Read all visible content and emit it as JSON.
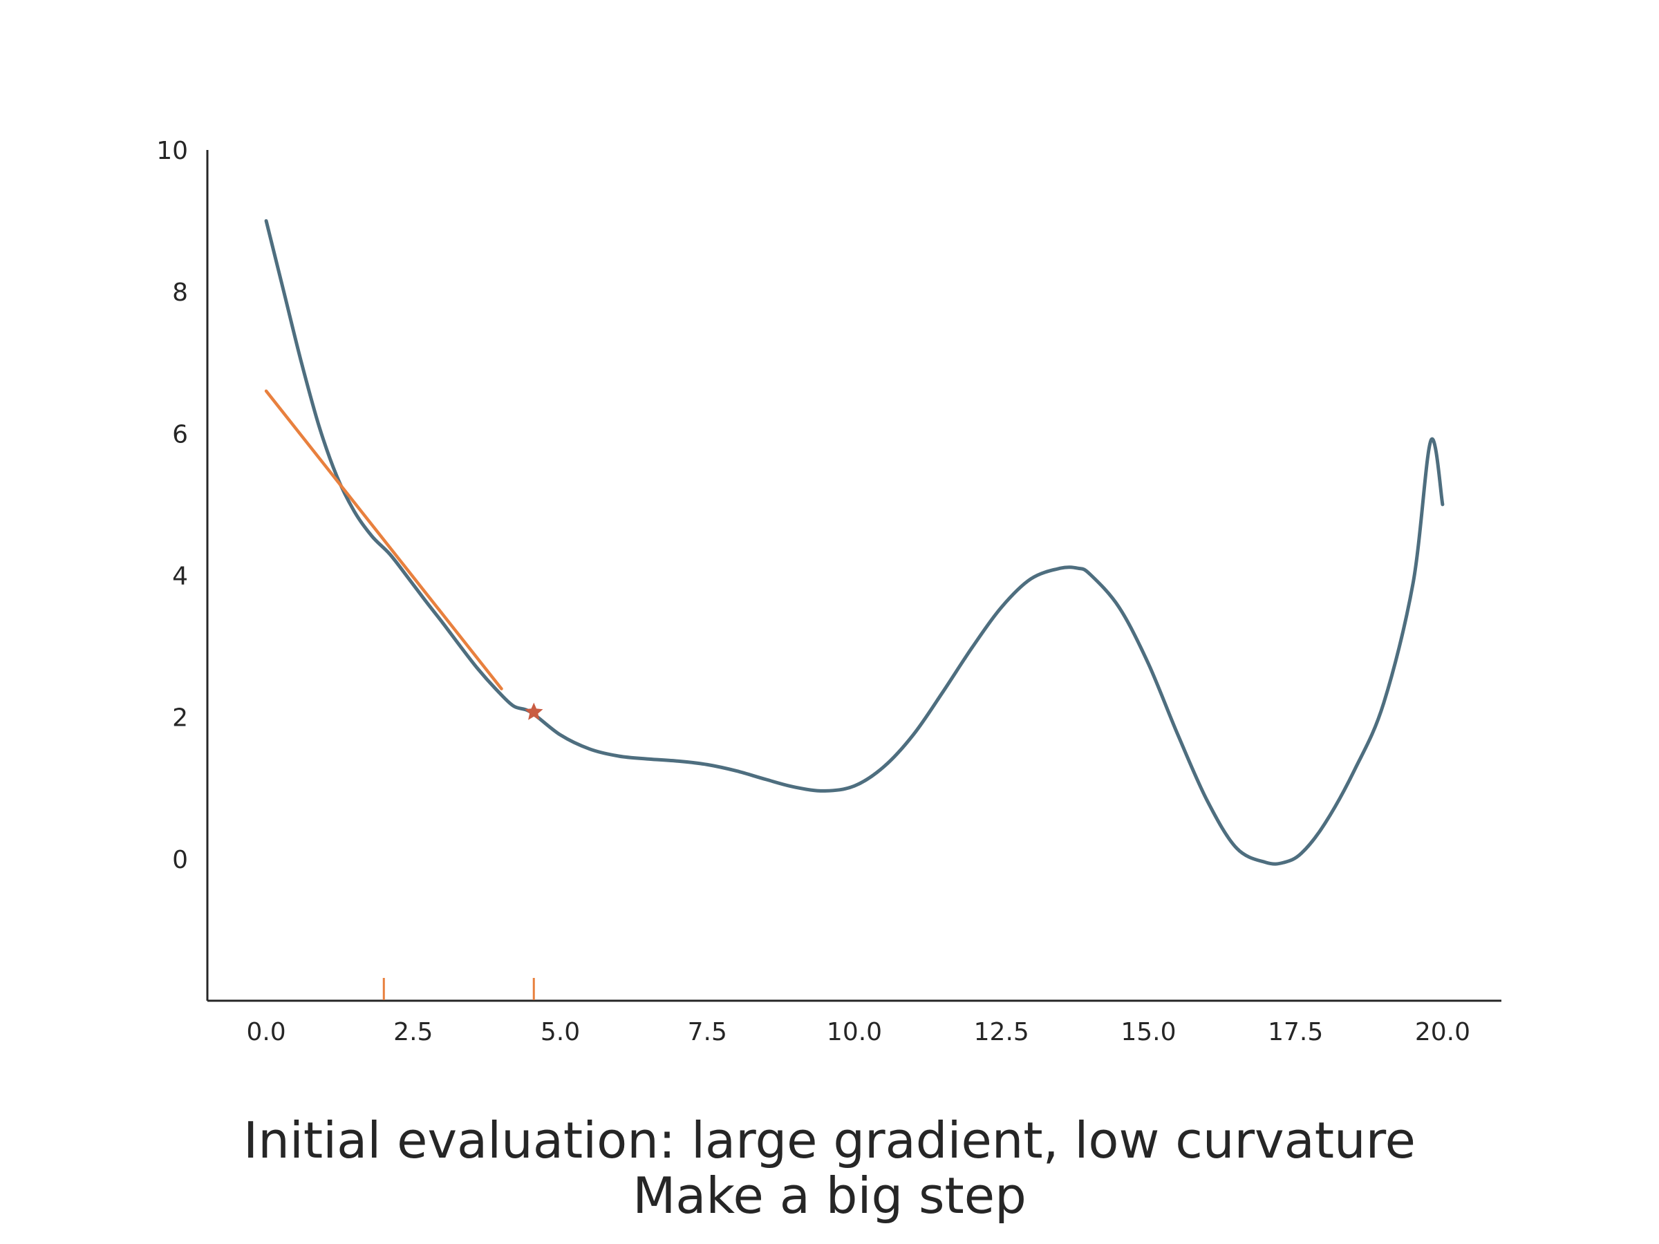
{
  "chart_data": {
    "type": "line",
    "xlim": [
      -1.0,
      21.0
    ],
    "ylim": [
      -2.0,
      10.0
    ],
    "x_ticks": [
      "0.0",
      "2.5",
      "5.0",
      "7.5",
      "10.0",
      "12.5",
      "15.0",
      "17.5",
      "20.0"
    ],
    "y_ticks": [
      "0",
      "2",
      "4",
      "6",
      "8",
      "10"
    ],
    "grid": false,
    "series": [
      {
        "color": "#4e6e7f",
        "x": [
          0.0,
          0.3,
          0.6,
          0.9,
          1.2,
          1.5,
          1.8,
          2.1,
          2.4,
          2.7,
          3.0,
          3.3,
          3.6,
          3.9,
          4.2,
          4.5,
          5.0,
          5.5,
          6.0,
          6.5,
          7.0,
          7.5,
          8.0,
          8.5,
          9.0,
          9.5,
          10.0,
          10.5,
          11.0,
          11.5,
          12.0,
          12.5,
          13.0,
          13.5,
          13.8,
          14.0,
          14.5,
          15.0,
          15.5,
          16.0,
          16.5,
          17.0,
          17.3,
          17.6,
          18.0,
          18.5,
          19.0,
          19.5,
          19.8,
          20.0
        ],
        "y": [
          9.0,
          8.0,
          7.0,
          6.1,
          5.4,
          4.9,
          4.55,
          4.3,
          3.98,
          3.65,
          3.33,
          3.0,
          2.68,
          2.4,
          2.16,
          2.07,
          1.75,
          1.55,
          1.45,
          1.41,
          1.38,
          1.33,
          1.24,
          1.12,
          1.01,
          0.96,
          1.03,
          1.3,
          1.75,
          2.35,
          2.98,
          3.55,
          3.95,
          4.1,
          4.1,
          4.02,
          3.55,
          2.75,
          1.75,
          0.82,
          0.15,
          -0.05,
          -0.05,
          0.08,
          0.5,
          1.25,
          2.2,
          3.9,
          5.9,
          5.0
        ]
      },
      {
        "color": "#e8803e",
        "x": [
          0.0,
          4.0
        ],
        "y": [
          6.6,
          2.4
        ]
      }
    ],
    "marker": {
      "x": 4.55,
      "y": 2.07,
      "color": "#c95c42",
      "symbol": "star"
    },
    "rug": {
      "x": [
        2.0,
        4.55
      ],
      "color": "#e8803e"
    },
    "caption": [
      "Initial evaluation: large gradient, low curvature",
      "Make a big step"
    ]
  }
}
